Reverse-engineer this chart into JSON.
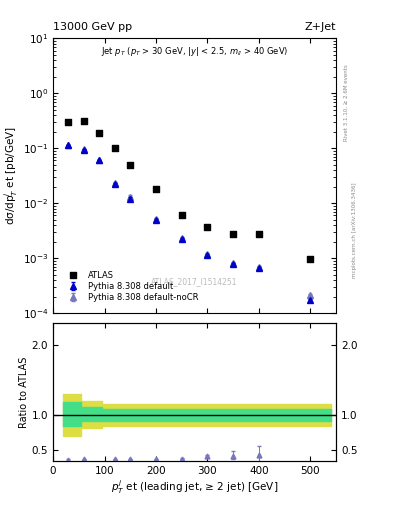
{
  "title_left": "13000 GeV pp",
  "title_right": "Z+Jet",
  "atlas_label": "ATLAS_2017_I1514251",
  "right_label_top": "Rivet 3.1.10, ≥ 2.6M events",
  "right_label_bot": "mcplots.cern.ch [arXiv:1306.3436]",
  "xlabel": "$p_T^{j}$ et (leading jet, ≥ 2 jet) [GeV]",
  "ylabel_main": "dσ/dp$_T^{j}$ et [pb/GeV]",
  "ylabel_ratio": "Ratio to ATLAS",
  "xlim": [
    0,
    550
  ],
  "ylim_main": [
    0.0001,
    10
  ],
  "ylim_ratio": [
    0.35,
    2.3
  ],
  "yticks_ratio": [
    0.5,
    1.0,
    2.0
  ],
  "atlas_x": [
    30,
    60,
    90,
    120,
    150,
    200,
    250,
    300,
    350,
    400,
    500
  ],
  "atlas_y": [
    0.3,
    0.32,
    0.19,
    0.1,
    0.05,
    0.018,
    0.006,
    0.0037,
    0.0028,
    0.0028,
    0.00095
  ],
  "pythia_default_x": [
    30,
    60,
    90,
    120,
    150,
    200,
    250,
    300,
    350,
    400,
    500
  ],
  "pythia_default_y": [
    0.115,
    0.095,
    0.06,
    0.022,
    0.012,
    0.005,
    0.0022,
    0.00115,
    0.0008,
    0.00065,
    0.00017
  ],
  "pythia_default_yerr": [
    0.002,
    0.002,
    0.002,
    0.001,
    0.001,
    0.0002,
    0.0001,
    5e-05,
    3e-05,
    3e-05,
    1e-05
  ],
  "pythia_nocr_x": [
    30,
    60,
    90,
    120,
    150,
    200,
    250,
    300,
    350,
    400,
    500
  ],
  "pythia_nocr_y": [
    0.115,
    0.097,
    0.062,
    0.023,
    0.013,
    0.0052,
    0.0023,
    0.0012,
    0.00083,
    0.00068,
    0.00021
  ],
  "pythia_nocr_yerr": [
    0.002,
    0.002,
    0.002,
    0.001,
    0.001,
    0.0002,
    0.0001,
    5e-05,
    3e-05,
    3e-05,
    1e-05
  ],
  "ratio_x": [
    30,
    60,
    120,
    150,
    200,
    250,
    300,
    350,
    400
  ],
  "ratio_y": [
    0.36,
    0.37,
    0.37,
    0.37,
    0.37,
    0.38,
    0.42,
    0.42,
    0.43
  ],
  "ratio_yerr_lo": [
    0.01,
    0.01,
    0.01,
    0.01,
    0.01,
    0.01,
    0.01,
    0.05,
    0.1
  ],
  "ratio_yerr_hi": [
    0.01,
    0.01,
    0.01,
    0.01,
    0.01,
    0.01,
    0.01,
    0.07,
    0.13
  ],
  "band_yellow_x": [
    20,
    55,
    55,
    95,
    95,
    540
  ],
  "band_yellow_lo": [
    0.7,
    0.7,
    0.82,
    0.82,
    0.84,
    0.84
  ],
  "band_yellow_hi": [
    1.3,
    1.3,
    1.2,
    1.2,
    1.16,
    1.16
  ],
  "band_green_x": [
    20,
    55,
    55,
    95,
    95,
    540
  ],
  "band_green_lo": [
    0.85,
    0.85,
    0.91,
    0.91,
    0.92,
    0.92
  ],
  "band_green_hi": [
    1.18,
    1.18,
    1.11,
    1.11,
    1.08,
    1.08
  ],
  "atlas_color": "#000000",
  "pythia_default_color": "#0000cc",
  "pythia_nocr_color": "#7777bb",
  "green_band_color": "#44dd88",
  "yellow_band_color": "#dddd44",
  "marker_atlas": "s",
  "marker_pythia": "^"
}
